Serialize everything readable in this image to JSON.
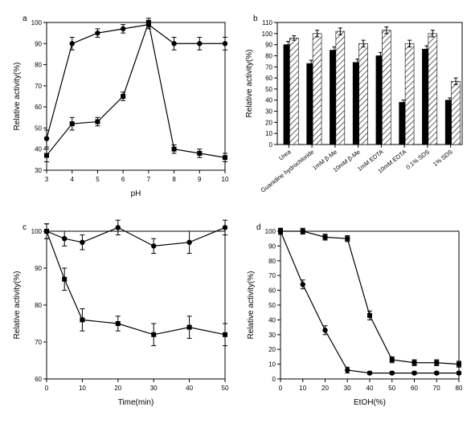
{
  "colors": {
    "bg": "#ffffff",
    "axis": "#000000",
    "line": "#000000",
    "marker_fill": "#000000",
    "hatch": "#000000",
    "err": "#000000"
  },
  "font": {
    "label_pt": 10,
    "tick_pt": 8,
    "panel_tag_pt": 10
  },
  "panel_a": {
    "tag": "a",
    "type": "line",
    "xlabel": "pH",
    "ylabel": "Relative activity(%)",
    "xlim": [
      3,
      10
    ],
    "xtick_step": 1,
    "ylim": [
      30,
      100
    ],
    "ytick_step": 10,
    "series": [
      {
        "marker": "square",
        "x": [
          3,
          4,
          5,
          6,
          7,
          8,
          9,
          10
        ],
        "y": [
          37,
          52,
          53,
          65,
          100,
          40,
          38,
          36
        ],
        "err": [
          3,
          3,
          2,
          2,
          2,
          2,
          2,
          2
        ]
      },
      {
        "marker": "circle",
        "x": [
          3,
          4,
          5,
          6,
          7,
          8,
          9,
          10
        ],
        "y": [
          45,
          90,
          95,
          97,
          99,
          90,
          90,
          90
        ],
        "err": [
          4,
          3,
          2,
          2,
          2,
          3,
          3,
          3
        ]
      }
    ]
  },
  "panel_b": {
    "tag": "b",
    "type": "bar",
    "ylabel": "Relative activity(%)",
    "ylim": [
      0,
      110
    ],
    "ytick_step": 10,
    "categories": [
      "Urea",
      "Guanidine hydrochloride",
      "1mM β-Me",
      "10mM β-Me",
      "1mM EDTA",
      "10mM EDTA",
      "0.1% SDS",
      "1% SDS"
    ],
    "groups": [
      {
        "fill": "solid",
        "values": [
          90,
          73,
          85,
          74,
          80,
          38,
          86,
          40
        ],
        "err": [
          3,
          3,
          3,
          3,
          3,
          2,
          3,
          2
        ]
      },
      {
        "fill": "hatched",
        "values": [
          96,
          100,
          102,
          91,
          103,
          91,
          100,
          57
        ],
        "err": [
          2,
          3,
          3,
          3,
          3,
          3,
          3,
          3
        ]
      }
    ],
    "bar_width": 0.38
  },
  "panel_c": {
    "tag": "c",
    "type": "line",
    "xlabel": "Time(min)",
    "ylabel": "Relative activity(%)",
    "xlim": [
      0,
      50
    ],
    "xtick_step": 10,
    "ylim": [
      60,
      100
    ],
    "ytick_step": 10,
    "series": [
      {
        "marker": "circle",
        "x": [
          0,
          5,
          10,
          20,
          30,
          40,
          50
        ],
        "y": [
          100,
          98,
          97,
          101,
          96,
          97,
          101
        ],
        "err": [
          2,
          2,
          2,
          2,
          2,
          3,
          2
        ]
      },
      {
        "marker": "square",
        "x": [
          0,
          5,
          10,
          20,
          30,
          40,
          50
        ],
        "y": [
          100,
          87,
          76,
          75,
          72,
          74,
          72
        ],
        "err": [
          2,
          3,
          3,
          2,
          3,
          3,
          3
        ]
      }
    ]
  },
  "panel_d": {
    "tag": "d",
    "type": "line",
    "xlabel": "EtOH(%)",
    "ylabel": "Relative activity(%)",
    "xlim": [
      0,
      80
    ],
    "xtick_step": 10,
    "ylim": [
      0,
      100
    ],
    "ytick_step": 10,
    "series": [
      {
        "marker": "square",
        "x": [
          0,
          10,
          20,
          30,
          40,
          50,
          60,
          70,
          80
        ],
        "y": [
          100,
          100,
          96,
          95,
          43,
          13,
          11,
          11,
          10
        ],
        "err": [
          2,
          2,
          2,
          2,
          3,
          2,
          2,
          2,
          2
        ]
      },
      {
        "marker": "circle",
        "x": [
          0,
          10,
          20,
          30,
          40,
          50,
          60,
          70,
          80
        ],
        "y": [
          100,
          64,
          33,
          6,
          4,
          4,
          4,
          4,
          4
        ],
        "err": [
          2,
          3,
          3,
          2,
          1,
          1,
          1,
          1,
          1
        ]
      }
    ]
  }
}
